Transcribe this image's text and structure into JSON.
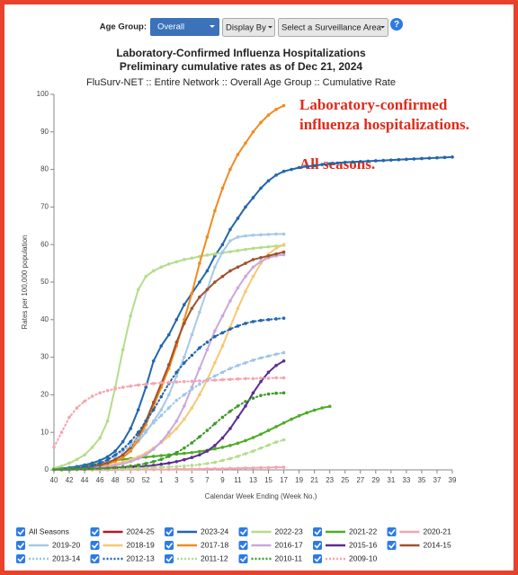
{
  "controls": {
    "age_group_label": "Age Group:",
    "age_group_value": "Overall",
    "display_by": "Display By",
    "surveillance_area": "Select a Surveillance Area",
    "help": "?"
  },
  "chart_data": {
    "type": "line",
    "title": "Laboratory-Confirmed Influenza Hospitalizations",
    "subtitle": "Preliminary cumulative rates as of Dec 21, 2024",
    "subtitle2": "FluSurv-NET :: Entire Network :: Overall Age Group :: Cumulative Rate",
    "annotations": [
      "Laboratory-confirmed",
      "influenza hospitalizations.",
      "All seasons."
    ],
    "x_label": "Calendar Week Ending (Week No.)",
    "y_label": "Rates per 100,000 population",
    "legend_all_label": "All Seasons",
    "ylim": [
      0,
      100
    ],
    "yticks": [
      0,
      10,
      20,
      30,
      40,
      50,
      60,
      70,
      80,
      90,
      100
    ],
    "grid": false,
    "categories": [
      "40",
      null,
      "42",
      null,
      "44",
      null,
      "46",
      null,
      "48",
      null,
      "50",
      null,
      "52",
      null,
      "1",
      null,
      "3",
      null,
      "5",
      null,
      "7",
      null,
      "9",
      null,
      "11",
      null,
      "13",
      null,
      "15",
      null,
      "17",
      null,
      "19",
      null,
      "21",
      null,
      "23",
      null,
      "25",
      null,
      "27",
      null,
      "29",
      null,
      "31",
      null,
      "33",
      null,
      "35",
      null,
      "37",
      null,
      "39"
    ],
    "series": [
      {
        "name": "2024-25",
        "color": "#b2182b",
        "dotted": false,
        "values": [
          0.1,
          0.1,
          0.2,
          0.2,
          0.3,
          0.3,
          0.4,
          0.5,
          0.6,
          0.7,
          0.9,
          1.1,
          null,
          null,
          null,
          null,
          null,
          null,
          null,
          null,
          null,
          null,
          null,
          null,
          null,
          null,
          null,
          null,
          null,
          null,
          null,
          null,
          null,
          null,
          null,
          null,
          null,
          null,
          null,
          null,
          null,
          null,
          null,
          null,
          null,
          null,
          null,
          null,
          null,
          null,
          null,
          null,
          null
        ]
      },
      {
        "name": "2023-24",
        "color": "#2166ac",
        "dotted": false,
        "values": [
          0.2,
          0.4,
          0.6,
          0.9,
          1.3,
          1.8,
          2.5,
          3.5,
          5,
          7.5,
          11,
          16,
          22,
          29,
          33,
          36,
          40,
          44,
          47,
          50,
          53,
          57,
          60,
          64,
          67,
          70,
          72.5,
          75,
          77,
          78.5,
          79.5,
          80,
          80.5,
          80.8,
          81,
          81.3,
          81.5,
          81.7,
          81.9,
          82,
          82.1,
          82.2,
          82.3,
          82.4,
          82.5,
          82.6,
          82.7,
          82.8,
          82.9,
          83,
          83.1,
          83.2,
          83.3
        ]
      },
      {
        "name": "2022-23",
        "color": "#b5dc8b",
        "dotted": false,
        "values": [
          0.5,
          1,
          1.8,
          2.8,
          4,
          6,
          8.5,
          13,
          22,
          32,
          41,
          48,
          51.5,
          53,
          54,
          54.8,
          55.4,
          56,
          56.4,
          56.8,
          57.2,
          57.5,
          57.8,
          58.1,
          58.4,
          58.7,
          59,
          59.2,
          59.4,
          59.6,
          59.8,
          null,
          null,
          null,
          null,
          null,
          null,
          null,
          null,
          null,
          null,
          null,
          null,
          null,
          null,
          null,
          null,
          null,
          null,
          null,
          null,
          null,
          null
        ]
      },
      {
        "name": "2021-22",
        "color": "#4dac26",
        "dotted": false,
        "values": [
          0.1,
          0.2,
          0.4,
          0.6,
          0.9,
          1.3,
          1.7,
          2.1,
          2.5,
          2.8,
          3,
          3.2,
          3.4,
          3.6,
          3.8,
          4,
          4.2,
          4.4,
          4.6,
          4.9,
          5.2,
          5.6,
          6,
          6.5,
          7.1,
          7.8,
          8.6,
          9.5,
          10.5,
          11.5,
          12.5,
          13.5,
          14.4,
          15.2,
          15.9,
          16.5,
          16.9,
          null,
          null,
          null,
          null,
          null,
          null,
          null,
          null,
          null,
          null,
          null,
          null,
          null,
          null,
          null,
          null
        ]
      },
      {
        "name": "2020-21",
        "color": "#f4a5ae",
        "dotted": false,
        "values": [
          0,
          0,
          0,
          0,
          0,
          0,
          0,
          0,
          0,
          0.1,
          0.1,
          0.1,
          0.1,
          0.1,
          0.1,
          0.1,
          0.2,
          0.2,
          0.2,
          0.2,
          0.3,
          0.3,
          0.3,
          0.4,
          0.4,
          0.5,
          0.5,
          0.6,
          0.6,
          0.7,
          0.7,
          null,
          null,
          null,
          null,
          null,
          null,
          null,
          null,
          null,
          null,
          null,
          null,
          null,
          null,
          null,
          null,
          null,
          null,
          null,
          null,
          null,
          null
        ]
      },
      {
        "name": "2019-20",
        "color": "#a6c8e8",
        "dotted": false,
        "values": [
          0.1,
          0.2,
          0.3,
          0.5,
          0.7,
          1,
          1.4,
          2,
          2.8,
          4,
          5.5,
          7.5,
          10,
          13,
          16,
          20,
          25,
          30,
          36,
          42,
          48,
          54,
          58,
          61,
          62,
          62.3,
          62.5,
          62.6,
          62.7,
          62.8,
          62.8,
          null,
          null,
          null,
          null,
          null,
          null,
          null,
          null,
          null,
          null,
          null,
          null,
          null,
          null,
          null,
          null,
          null,
          null,
          null,
          null,
          null,
          null
        ]
      },
      {
        "name": "2018-19",
        "color": "#f7c873",
        "dotted": false,
        "values": [
          0.1,
          0.2,
          0.3,
          0.4,
          0.5,
          0.7,
          0.9,
          1.2,
          1.6,
          2.1,
          2.7,
          3.5,
          4.5,
          5.8,
          7.3,
          9,
          11,
          13.5,
          16.5,
          20,
          24,
          28.5,
          33,
          38,
          43,
          47.5,
          51.5,
          55,
          57.5,
          59,
          60,
          null,
          null,
          null,
          null,
          null,
          null,
          null,
          null,
          null,
          null,
          null,
          null,
          null,
          null,
          null,
          null,
          null,
          null,
          null,
          null,
          null,
          null
        ]
      },
      {
        "name": "2017-18",
        "color": "#f28b1e",
        "dotted": false,
        "values": [
          0.1,
          0.2,
          0.3,
          0.4,
          0.6,
          0.8,
          1.1,
          1.6,
          2.3,
          3.3,
          5,
          8,
          12,
          17,
          22,
          27,
          33,
          40,
          47,
          55,
          62,
          69,
          75,
          80,
          84,
          87,
          90,
          92.5,
          94.5,
          96,
          97,
          null,
          null,
          null,
          null,
          null,
          null,
          null,
          null,
          null,
          null,
          null,
          null,
          null,
          null,
          null,
          null,
          null,
          null,
          null,
          null,
          null,
          null
        ]
      },
      {
        "name": "2016-17",
        "color": "#c9a8dc",
        "dotted": false,
        "values": [
          0.1,
          0.1,
          0.2,
          0.3,
          0.4,
          0.5,
          0.7,
          0.9,
          1.2,
          1.6,
          2.2,
          3,
          4,
          5.5,
          7.5,
          10,
          13,
          17,
          22,
          27,
          32,
          37,
          41,
          45,
          48.5,
          51.5,
          54,
          55.5,
          56.5,
          57,
          57.3,
          null,
          null,
          null,
          null,
          null,
          null,
          null,
          null,
          null,
          null,
          null,
          null,
          null,
          null,
          null,
          null,
          null,
          null,
          null,
          null,
          null,
          null
        ]
      },
      {
        "name": "2015-16",
        "color": "#5e2d91",
        "dotted": false,
        "values": [
          0.1,
          0.1,
          0.1,
          0.2,
          0.2,
          0.3,
          0.3,
          0.4,
          0.5,
          0.6,
          0.7,
          0.8,
          1,
          1.2,
          1.5,
          1.8,
          2.2,
          2.7,
          3.3,
          4,
          5,
          6.5,
          8.5,
          11,
          14,
          17,
          20.5,
          23.5,
          26,
          27.8,
          29,
          null,
          null,
          null,
          null,
          null,
          null,
          null,
          null,
          null,
          null,
          null,
          null,
          null,
          null,
          null,
          null,
          null,
          null,
          null,
          null,
          null,
          null
        ]
      },
      {
        "name": "2014-15",
        "color": "#a0522d",
        "dotted": false,
        "values": [
          0.1,
          0.2,
          0.3,
          0.4,
          0.6,
          0.9,
          1.3,
          1.9,
          2.8,
          4,
          6,
          9,
          13,
          18,
          23,
          28,
          34,
          39,
          43,
          46,
          48,
          50,
          51.5,
          53,
          54,
          55,
          56,
          56.5,
          57,
          57.5,
          58,
          null,
          null,
          null,
          null,
          null,
          null,
          null,
          null,
          null,
          null,
          null,
          null,
          null,
          null,
          null,
          null,
          null,
          null,
          null,
          null,
          null,
          null
        ]
      },
      {
        "name": "2013-14",
        "color": "#9ec5e6",
        "dotted": true,
        "values": [
          0.1,
          0.2,
          0.3,
          0.5,
          0.8,
          1.2,
          1.8,
          2.6,
          3.6,
          5,
          6.5,
          8.5,
          10.5,
          12.5,
          14.5,
          16.5,
          18.5,
          20,
          21.5,
          22.8,
          24,
          25,
          26,
          27,
          27.8,
          28.5,
          29.2,
          29.8,
          30.3,
          30.8,
          31.2,
          null,
          null,
          null,
          null,
          null,
          null,
          null,
          null,
          null,
          null,
          null,
          null,
          null,
          null,
          null,
          null,
          null,
          null,
          null,
          null,
          null,
          null
        ]
      },
      {
        "name": "2012-13",
        "color": "#2166ac",
        "dotted": true,
        "values": [
          0.1,
          0.2,
          0.3,
          0.5,
          0.8,
          1.2,
          1.8,
          2.7,
          4,
          5.5,
          7.5,
          10,
          13,
          16,
          19.5,
          23,
          26,
          28.5,
          30.5,
          32.5,
          34,
          35.5,
          36.5,
          37.5,
          38.3,
          39,
          39.5,
          39.8,
          40,
          40.2,
          40.4,
          null,
          null,
          null,
          null,
          null,
          null,
          null,
          null,
          null,
          null,
          null,
          null,
          null,
          null,
          null,
          null,
          null,
          null,
          null,
          null,
          null,
          null
        ]
      },
      {
        "name": "2011-12",
        "color": "#b5dc8b",
        "dotted": true,
        "values": [
          0.1,
          0.1,
          0.1,
          0.1,
          0.2,
          0.2,
          0.2,
          0.3,
          0.3,
          0.4,
          0.4,
          0.5,
          0.5,
          0.6,
          0.7,
          0.8,
          0.9,
          1,
          1.2,
          1.4,
          1.7,
          2,
          2.5,
          3,
          3.6,
          4.3,
          5,
          5.8,
          6.6,
          7.4,
          8,
          null,
          null,
          null,
          null,
          null,
          null,
          null,
          null,
          null,
          null,
          null,
          null,
          null,
          null,
          null,
          null,
          null,
          null,
          null,
          null,
          null,
          null
        ]
      },
      {
        "name": "2010-11",
        "color": "#3f9a2a",
        "dotted": true,
        "values": [
          0.1,
          0.1,
          0.1,
          0.2,
          0.2,
          0.3,
          0.4,
          0.5,
          0.6,
          0.8,
          1,
          1.3,
          1.7,
          2.2,
          2.8,
          3.6,
          4.6,
          5.8,
          7.2,
          8.8,
          10.5,
          12.3,
          14,
          15.6,
          17,
          18.2,
          19.1,
          19.8,
          20.2,
          20.4,
          20.5,
          null,
          null,
          null,
          null,
          null,
          null,
          null,
          null,
          null,
          null,
          null,
          null,
          null,
          null,
          null,
          null,
          null,
          null,
          null,
          null,
          null,
          null
        ]
      },
      {
        "name": "2009-10",
        "color": "#f4a5ae",
        "dotted": true,
        "values": [
          6,
          10,
          14,
          16.5,
          18.3,
          19.6,
          20.5,
          21.1,
          21.6,
          22,
          22.3,
          22.6,
          22.8,
          23,
          23.2,
          23.3,
          23.4,
          23.5,
          23.6,
          23.7,
          23.8,
          23.9,
          24,
          24.1,
          24.2,
          24.3,
          24.3,
          24.4,
          24.4,
          24.5,
          24.5,
          null,
          null,
          null,
          null,
          null,
          null,
          null,
          null,
          null,
          null,
          null,
          null,
          null,
          null,
          null,
          null,
          null,
          null,
          null,
          null,
          null,
          null
        ]
      }
    ]
  }
}
